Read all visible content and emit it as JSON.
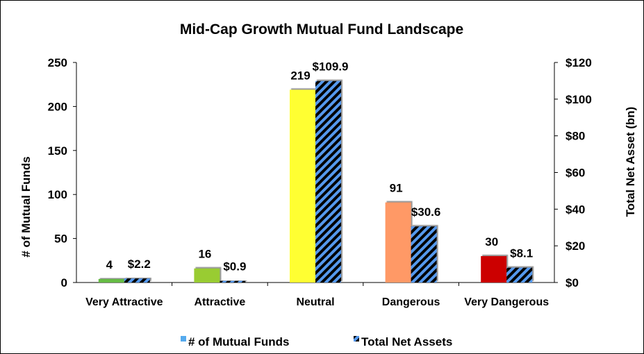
{
  "chart_data": {
    "type": "bar",
    "title": "Mid-Cap Growth Mutual Fund Landscape",
    "categories": [
      "Very Attractive",
      "Attractive",
      "Neutral",
      "Dangerous",
      "Very Dangerous"
    ],
    "y_left_label": "# of Mutual Funds",
    "y_right_label": "Total Net Asset (bn)",
    "y_left_lim": [
      0,
      250
    ],
    "y_left_ticks": [
      "0",
      "50",
      "100",
      "150",
      "200",
      "250"
    ],
    "y_right_lim": [
      0,
      120
    ],
    "y_right_ticks": [
      "$0",
      "$20",
      "$40",
      "$60",
      "$80",
      "$100",
      "$120"
    ],
    "series": [
      {
        "name": "# of Mutual Funds",
        "axis": "left",
        "values": [
          4,
          16,
          219,
          91,
          30
        ],
        "labels": [
          "4",
          "16",
          "219",
          "91",
          "30"
        ],
        "colors": [
          "#66bb44",
          "#99cc33",
          "#ffff33",
          "#ff9966",
          "#cc0000"
        ]
      },
      {
        "name": "Total Net Assets",
        "axis": "right",
        "values": [
          2.2,
          0.9,
          109.9,
          30.6,
          8.1
        ],
        "labels": [
          "$2.2",
          "$0.9",
          "$109.9",
          "$30.6",
          "$8.1"
        ],
        "pattern": [
          "#000000",
          "#5599ee"
        ]
      }
    ],
    "legend_position": "bottom",
    "legend_colors": [
      "#55aaee",
      "#000000"
    ],
    "grid": false
  }
}
